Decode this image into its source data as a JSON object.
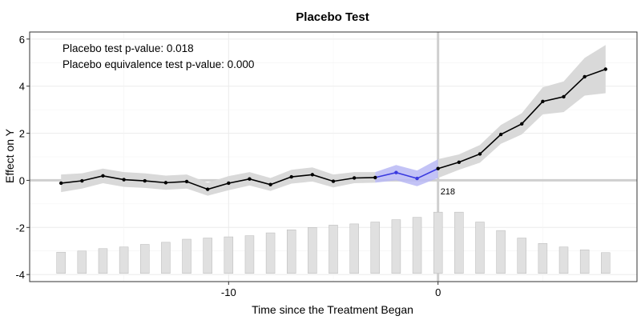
{
  "chart_data": {
    "type": "line",
    "title": "Placebo Test",
    "xlabel": "Time since the Treatment Began",
    "ylabel": "Effect on Y",
    "xlim": [
      -19.5,
      9.5
    ],
    "ylim": [
      -4.3,
      6.3
    ],
    "x_ticks": [
      -10,
      0
    ],
    "x_tick_labels": [
      "-10",
      "0"
    ],
    "y_ticks": [
      -4,
      -2,
      0,
      2,
      4,
      6
    ],
    "y_tick_labels": [
      "-4",
      "-2",
      "0",
      "2",
      "4",
      "6"
    ],
    "grid": true,
    "annotations": [
      "Placebo test p-value: 0.018",
      "Placebo equivalence test p-value: 0.000"
    ],
    "count_label": "218",
    "x": [
      -18,
      -17,
      -16,
      -15,
      -14,
      -13,
      -12,
      -11,
      -10,
      -9,
      -8,
      -7,
      -6,
      -5,
      -4,
      -3,
      -2,
      -1,
      0,
      1,
      2,
      3,
      4,
      5,
      6,
      7,
      8
    ],
    "estimates": [
      -0.12,
      -0.02,
      0.19,
      0.03,
      -0.02,
      -0.1,
      -0.05,
      -0.38,
      -0.12,
      0.06,
      -0.18,
      0.15,
      0.24,
      -0.04,
      0.1,
      0.12,
      0.33,
      0.08,
      0.5,
      0.77,
      1.12,
      1.95,
      2.4,
      3.35,
      3.55,
      4.4,
      4.72
    ],
    "ci_lower": [
      -0.5,
      -0.35,
      -0.12,
      -0.28,
      -0.32,
      -0.4,
      -0.35,
      -0.65,
      -0.42,
      -0.22,
      -0.45,
      -0.14,
      -0.05,
      -0.3,
      -0.12,
      -0.1,
      0.0,
      -0.25,
      0.1,
      0.45,
      0.75,
      1.55,
      1.95,
      2.8,
      2.9,
      3.6,
      3.7
    ],
    "ci_upper": [
      0.25,
      0.3,
      0.5,
      0.35,
      0.3,
      0.2,
      0.25,
      -0.1,
      0.18,
      0.35,
      0.1,
      0.45,
      0.55,
      0.25,
      0.35,
      0.35,
      0.65,
      0.42,
      0.9,
      1.1,
      1.5,
      2.35,
      2.85,
      3.95,
      4.2,
      5.2,
      5.75
    ],
    "placebo_period": [
      -3,
      -1
    ],
    "count_bars": {
      "x": [
        -18,
        -17,
        -16,
        -15,
        -14,
        -13,
        -12,
        -11,
        -10,
        -9,
        -8,
        -7,
        -6,
        -5,
        -4,
        -3,
        -2,
        -1,
        0,
        1,
        2,
        3,
        4,
        5,
        6,
        7,
        8
      ],
      "heights": [
        0.9,
        0.95,
        1.05,
        1.12,
        1.23,
        1.32,
        1.45,
        1.5,
        1.55,
        1.6,
        1.72,
        1.85,
        1.95,
        2.05,
        2.1,
        2.18,
        2.28,
        2.38,
        2.6,
        2.6,
        2.18,
        1.82,
        1.5,
        1.27,
        1.12,
        1.0,
        0.88
      ],
      "baseline": -3.95
    },
    "colors": {
      "line": "#000000",
      "ci_band": "#d9d9d9",
      "placebo_line": "#3a3ae0",
      "placebo_band": "#b8b8f5",
      "bars": "#e0e0e0",
      "bar_stroke": "#b8b8b8",
      "ref_lines": "#cfcfcf",
      "grid": "#ebebeb",
      "panel_border": "#333333"
    }
  }
}
